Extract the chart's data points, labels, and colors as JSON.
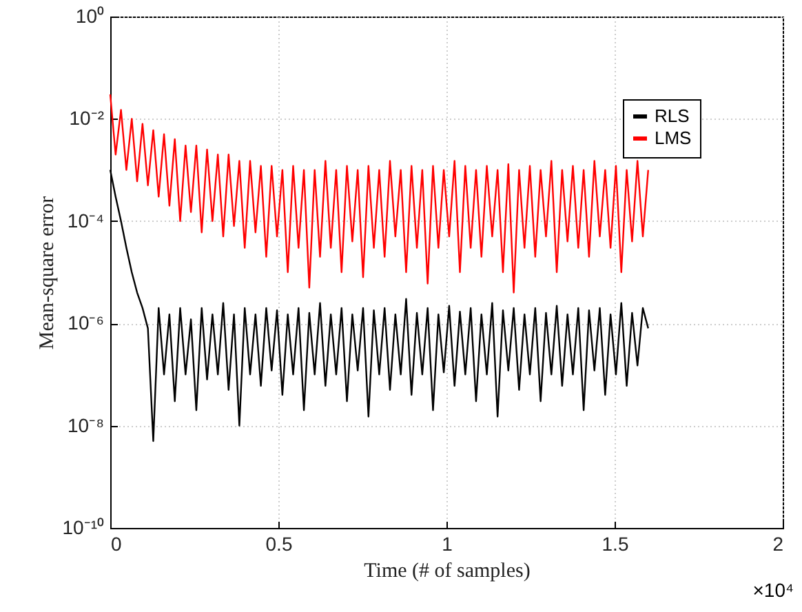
{
  "chart_data": {
    "type": "line",
    "xlabel": "Time (# of samples)",
    "ylabel": "Mean-square error",
    "log": "y",
    "grid": true,
    "legend": "top right",
    "line_style": "solid",
    "marker": "none",
    "xlim": [
      0,
      2
    ],
    "xticks": [
      0,
      0.5,
      1,
      1.5,
      2
    ],
    "ylim": [
      1e-10,
      1
    ],
    "yticks": [
      {
        "value": 1e-10,
        "label": "10⁻¹⁰"
      },
      {
        "value": 1e-08,
        "label": "10⁻⁸"
      },
      {
        "value": 1e-06,
        "label": "10⁻⁶"
      },
      {
        "value": 0.0001,
        "label": "10⁻⁴"
      },
      {
        "value": 0.01,
        "label": "10⁻²"
      },
      {
        "value": 1,
        "label": "10⁰"
      }
    ],
    "annotations": [
      "×10⁴"
    ],
    "x": [
      0,
      0.016,
      0.032,
      0.048,
      0.064,
      0.08,
      0.096,
      0.112,
      0.128,
      0.144,
      0.16,
      0.176,
      0.192,
      0.208,
      0.224,
      0.24,
      0.256,
      0.272,
      0.288,
      0.304,
      0.32,
      0.336,
      0.352,
      0.368,
      0.384,
      0.4,
      0.416,
      0.432,
      0.448,
      0.464,
      0.48,
      0.496,
      0.512,
      0.528,
      0.544,
      0.56,
      0.576,
      0.592,
      0.608,
      0.624,
      0.64,
      0.656,
      0.672,
      0.688,
      0.704,
      0.72,
      0.736,
      0.752,
      0.768,
      0.784,
      0.8,
      0.816,
      0.832,
      0.848,
      0.864,
      0.88,
      0.896,
      0.912,
      0.928,
      0.944,
      0.96,
      0.976,
      0.992,
      1.008,
      1.024,
      1.04,
      1.056,
      1.072,
      1.088,
      1.104,
      1.12,
      1.136,
      1.152,
      1.168,
      1.184,
      1.2,
      1.216,
      1.232,
      1.248,
      1.264,
      1.28,
      1.296,
      1.312,
      1.328,
      1.344,
      1.36,
      1.376,
      1.392,
      1.408,
      1.424,
      1.44,
      1.456,
      1.472,
      1.488,
      1.504,
      1.52,
      1.536,
      1.552,
      1.568,
      1.584,
      1.6
    ],
    "series": [
      {
        "name": "RLS",
        "color": "#000000",
        "values": [
          0.001,
          0.0003,
          0.0001,
          3e-05,
          1e-05,
          4e-06,
          2e-06,
          8e-07,
          5e-09,
          2e-06,
          1e-07,
          1.5e-06,
          3e-08,
          2e-06,
          1e-07,
          1.2e-06,
          2e-08,
          2e-06,
          8e-08,
          1.5e-06,
          1e-07,
          2.5e-06,
          5e-08,
          1.5e-06,
          1e-08,
          2e-06,
          1e-07,
          1.5e-06,
          6e-08,
          2e-06,
          1.2e-07,
          1.8e-06,
          4e-08,
          1.5e-06,
          1e-07,
          2e-06,
          2e-08,
          1.6e-06,
          1e-07,
          2.5e-06,
          6e-08,
          1.5e-06,
          1e-07,
          2e-06,
          3e-08,
          1.5e-06,
          1.2e-07,
          2e-06,
          1.5e-08,
          1.8e-06,
          1e-07,
          2e-06,
          5e-08,
          1.5e-06,
          1e-07,
          3e-06,
          4e-08,
          1.6e-06,
          1e-07,
          2e-06,
          2e-08,
          1.5e-06,
          1.1e-07,
          2.2e-06,
          6e-08,
          1.7e-06,
          1e-07,
          2e-06,
          3e-08,
          1.5e-06,
          1e-07,
          2.5e-06,
          1.5e-08,
          1.8e-06,
          1.2e-07,
          2e-06,
          5e-08,
          1.5e-06,
          1e-07,
          2e-06,
          3e-08,
          1.6e-06,
          1e-07,
          2.2e-06,
          6e-08,
          1.5e-06,
          1e-07,
          2e-06,
          2e-08,
          1.8e-06,
          1.2e-07,
          2e-06,
          4e-08,
          1.5e-06,
          1e-07,
          2.5e-06,
          6e-08,
          1.6e-06,
          1.5e-07,
          2e-06,
          8e-07
        ]
      },
      {
        "name": "LMS",
        "color": "#ff0000",
        "values": [
          0.03,
          0.002,
          0.015,
          0.001,
          0.01,
          0.0006,
          0.008,
          0.0005,
          0.006,
          0.0003,
          0.005,
          0.0002,
          0.004,
          0.0001,
          0.003,
          0.00015,
          0.003,
          6e-05,
          0.0025,
          0.0001,
          0.002,
          5e-05,
          0.002,
          8e-05,
          0.0015,
          3e-05,
          0.0015,
          6e-05,
          0.0012,
          2e-05,
          0.0012,
          5e-05,
          0.001,
          1e-05,
          0.0012,
          3e-05,
          0.001,
          5e-06,
          0.001,
          2e-05,
          0.0015,
          3e-05,
          0.001,
          1e-05,
          0.0012,
          4e-05,
          0.001,
          8e-06,
          0.0012,
          3e-05,
          0.001,
          2e-05,
          0.0015,
          5e-05,
          0.001,
          1e-05,
          0.0012,
          3e-05,
          0.001,
          6e-06,
          0.0012,
          3e-05,
          0.001,
          5e-05,
          0.0015,
          1e-05,
          0.0012,
          3e-05,
          0.001,
          2e-05,
          0.0012,
          5e-05,
          0.001,
          1e-05,
          0.0013,
          4e-06,
          0.001,
          3e-05,
          0.0012,
          2e-05,
          0.001,
          5e-05,
          0.0015,
          1e-05,
          0.001,
          4e-05,
          0.0012,
          3e-05,
          0.001,
          2e-05,
          0.0015,
          5e-05,
          0.001,
          3e-05,
          0.0012,
          1e-05,
          0.001,
          4e-05,
          0.0015,
          5e-05,
          0.001
        ]
      }
    ]
  }
}
